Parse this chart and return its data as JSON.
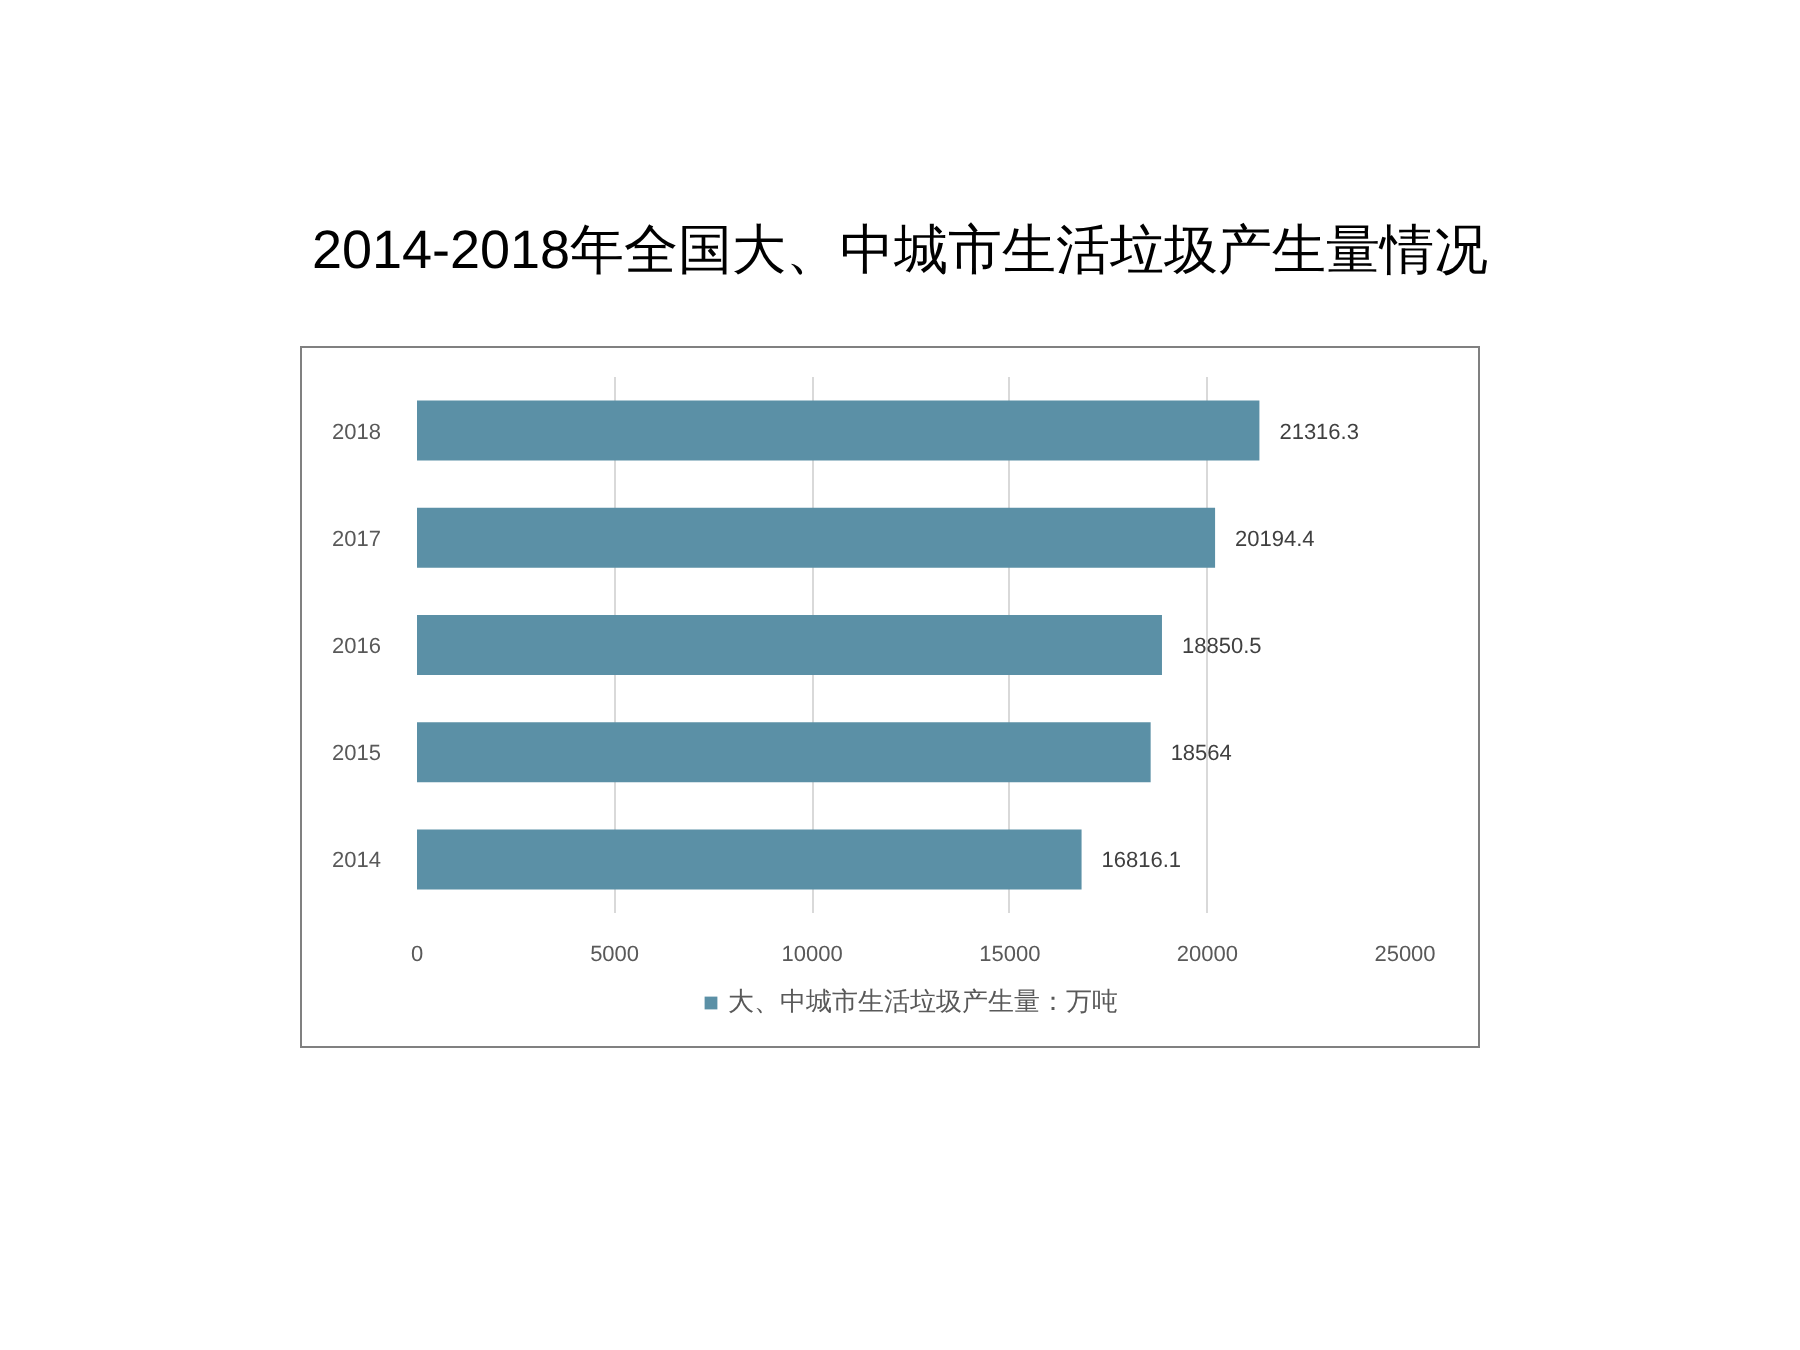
{
  "chart_data": {
    "type": "bar",
    "title": "2014-2018年全国大、中城市生活垃圾产生量情况",
    "orientation": "horizontal",
    "categories": [
      "2018",
      "2017",
      "2016",
      "2015",
      "2014"
    ],
    "series": [
      {
        "name": "大、中城市生活垃圾产生量：万吨",
        "color": "#5b90a6",
        "values": [
          21316.3,
          20194.4,
          18850.5,
          18564,
          16816.1
        ]
      }
    ],
    "xlim": [
      0,
      25000
    ],
    "xticks": [
      0,
      5000,
      10000,
      15000,
      20000,
      25000
    ],
    "grid": "x",
    "legend": "bottom",
    "data_labels": true
  }
}
